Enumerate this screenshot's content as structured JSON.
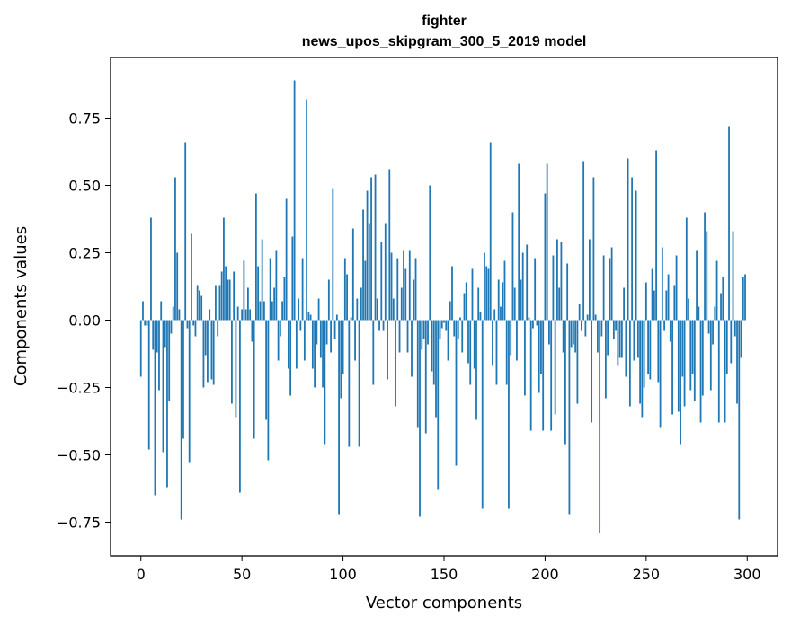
{
  "chart_data": {
    "type": "bar",
    "title": "fighter",
    "subtitle": "news_upos_skipgram_300_5_2019 model",
    "xlabel": "Vector components",
    "ylabel": "Components values",
    "xlim": [
      -15,
      315
    ],
    "ylim": [
      -0.875,
      0.975
    ],
    "xticks": [
      0,
      50,
      100,
      150,
      200,
      250,
      300
    ],
    "yticks": [
      -0.75,
      -0.5,
      -0.25,
      0.0,
      0.25,
      0.5,
      0.75
    ],
    "ytick_labels": [
      "−0.75",
      "−0.50",
      "−0.25",
      "0.00",
      "0.25",
      "0.50",
      "0.75"
    ],
    "bar_color": "#1f77b4",
    "grid": false,
    "x": [
      0,
      1,
      2,
      3,
      4,
      5,
      6,
      7,
      8,
      9,
      10,
      11,
      12,
      13,
      14,
      15,
      16,
      17,
      18,
      19,
      20,
      21,
      22,
      23,
      24,
      25,
      26,
      27,
      28,
      29,
      30,
      31,
      32,
      33,
      34,
      35,
      36,
      37,
      38,
      39,
      40,
      41,
      42,
      43,
      44,
      45,
      46,
      47,
      48,
      49,
      50,
      51,
      52,
      53,
      54,
      55,
      56,
      57,
      58,
      59,
      60,
      61,
      62,
      63,
      64,
      65,
      66,
      67,
      68,
      69,
      70,
      71,
      72,
      73,
      74,
      75,
      76,
      77,
      78,
      79,
      80,
      81,
      82,
      83,
      84,
      85,
      86,
      87,
      88,
      89,
      90,
      91,
      92,
      93,
      94,
      95,
      96,
      97,
      98,
      99,
      100,
      101,
      102,
      103,
      104,
      105,
      106,
      107,
      108,
      109,
      110,
      111,
      112,
      113,
      114,
      115,
      116,
      117,
      118,
      119,
      120,
      121,
      122,
      123,
      124,
      125,
      126,
      127,
      128,
      129,
      130,
      131,
      132,
      133,
      134,
      135,
      136,
      137,
      138,
      139,
      140,
      141,
      142,
      143,
      144,
      145,
      146,
      147,
      148,
      149,
      150,
      151,
      152,
      153,
      154,
      155,
      156,
      157,
      158,
      159,
      160,
      161,
      162,
      163,
      164,
      165,
      166,
      167,
      168,
      169,
      170,
      171,
      172,
      173,
      174,
      175,
      176,
      177,
      178,
      179,
      180,
      181,
      182,
      183,
      184,
      185,
      186,
      187,
      188,
      189,
      190,
      191,
      192,
      193,
      194,
      195,
      196,
      197,
      198,
      199,
      200,
      201,
      202,
      203,
      204,
      205,
      206,
      207,
      208,
      209,
      210,
      211,
      212,
      213,
      214,
      215,
      216,
      217,
      218,
      219,
      220,
      221,
      222,
      223,
      224,
      225,
      226,
      227,
      228,
      229,
      230,
      231,
      232,
      233,
      234,
      235,
      236,
      237,
      238,
      239,
      240,
      241,
      242,
      243,
      244,
      245,
      246,
      247,
      248,
      249,
      250,
      251,
      252,
      253,
      254,
      255,
      256,
      257,
      258,
      259,
      260,
      261,
      262,
      263,
      264,
      265,
      266,
      267,
      268,
      269,
      270,
      271,
      272,
      273,
      274,
      275,
      276,
      277,
      278,
      279,
      280,
      281,
      282,
      283,
      284,
      285,
      286,
      287,
      288,
      289,
      290,
      291,
      292,
      293,
      294,
      295,
      296,
      297,
      298,
      299
    ],
    "values": [
      -0.21,
      0.07,
      -0.02,
      -0.02,
      -0.48,
      0.38,
      -0.11,
      -0.65,
      -0.12,
      -0.26,
      0.07,
      -0.49,
      -0.1,
      -0.62,
      -0.3,
      -0.05,
      0.05,
      0.53,
      0.25,
      0.04,
      -0.74,
      -0.44,
      0.66,
      -0.03,
      -0.53,
      0.32,
      -0.02,
      -0.06,
      0.13,
      0.11,
      0.09,
      -0.25,
      -0.13,
      -0.23,
      0.04,
      -0.22,
      -0.24,
      0.13,
      -0.06,
      0.13,
      0.18,
      0.38,
      0.2,
      0.15,
      0.15,
      -0.31,
      0.18,
      -0.36,
      0.05,
      -0.64,
      0.04,
      0.22,
      0.04,
      0.12,
      0.04,
      -0.08,
      -0.44,
      0.47,
      0.2,
      0.07,
      0.3,
      0.07,
      -0.37,
      -0.52,
      0.23,
      0.07,
      0.12,
      0.26,
      -0.15,
      -0.06,
      0.07,
      0.16,
      0.45,
      -0.18,
      -0.28,
      0.31,
      0.89,
      -0.18,
      0.08,
      -0.04,
      0.23,
      -0.15,
      0.82,
      0.03,
      0.02,
      -0.18,
      -0.25,
      -0.09,
      0.08,
      -0.14,
      -0.25,
      -0.46,
      -0.09,
      0.15,
      -0.12,
      0.49,
      -0.07,
      0.02,
      -0.72,
      -0.29,
      -0.2,
      0.23,
      0.17,
      -0.47,
      0.01,
      0.34,
      -0.15,
      0.08,
      -0.47,
      0.12,
      0.41,
      0.22,
      0.48,
      0.36,
      0.53,
      -0.24,
      0.54,
      0.08,
      -0.04,
      0.29,
      -0.04,
      0.36,
      -0.22,
      0.56,
      0.25,
      0.08,
      -0.32,
      0.23,
      -0.12,
      0.12,
      0.26,
      0.19,
      -0.12,
      0.26,
      -0.21,
      0.15,
      0.23,
      -0.4,
      -0.73,
      -0.11,
      -0.07,
      -0.42,
      -0.09,
      0.5,
      -0.19,
      -0.24,
      -0.36,
      -0.63,
      -0.07,
      -0.03,
      -0.01,
      -0.04,
      -0.15,
      0.07,
      0.2,
      -0.06,
      -0.54,
      -0.07,
      0.01,
      -0.12,
      0.1,
      0.14,
      -0.16,
      -0.24,
      0.19,
      -0.18,
      -0.37,
      0.12,
      0.03,
      -0.7,
      0.25,
      0.2,
      0.19,
      0.66,
      -0.17,
      0.04,
      -0.24,
      0.15,
      0.05,
      0.14,
      0.22,
      -0.24,
      -0.7,
      -0.13,
      0.4,
      0.12,
      -0.15,
      0.58,
      0.15,
      0.25,
      -0.28,
      0.28,
      0.01,
      -0.41,
      -0.03,
      0.23,
      -0.02,
      -0.27,
      -0.2,
      -0.41,
      0.47,
      0.58,
      -0.09,
      -0.41,
      0.24,
      -0.35,
      0.3,
      0.12,
      0.29,
      -0.12,
      -0.46,
      0.21,
      -0.72,
      -0.1,
      -0.09,
      -0.12,
      -0.31,
      0.06,
      -0.04,
      0.59,
      -0.06,
      0.02,
      0.3,
      -0.38,
      0.53,
      0.02,
      -0.12,
      -0.79,
      -0.06,
      0.24,
      -0.29,
      -0.13,
      0.23,
      0.27,
      -0.07,
      -0.04,
      -0.17,
      -0.14,
      -0.14,
      0.12,
      -0.21,
      0.6,
      -0.32,
      0.53,
      -0.15,
      0.48,
      -0.14,
      -0.31,
      -0.36,
      -0.25,
      0.14,
      -0.2,
      -0.22,
      0.19,
      0.11,
      0.63,
      -0.23,
      -0.4,
      0.27,
      -0.04,
      0.11,
      0.17,
      -0.08,
      -0.35,
      0.13,
      0.24,
      -0.34,
      -0.46,
      -0.21,
      -0.32,
      0.38,
      0.08,
      -0.26,
      -0.2,
      -0.3,
      0.26,
      0.05,
      -0.38,
      -0.28,
      0.4,
      0.33,
      -0.05,
      -0.26,
      -0.09,
      0.05,
      0.22,
      -0.38,
      0.1,
      0.16,
      -0.38,
      -0.2,
      0.72,
      -0.16,
      0.33,
      -0.06,
      -0.31,
      -0.74,
      -0.14,
      0.16,
      0.17
    ]
  }
}
